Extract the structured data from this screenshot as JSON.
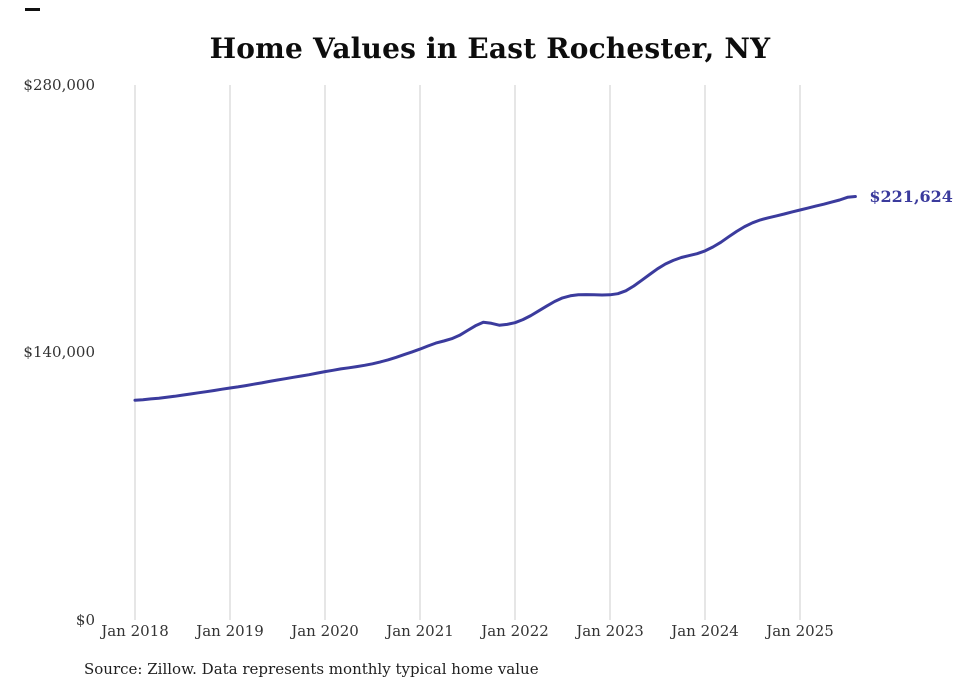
{
  "title": "Home Values in East Rochester, NY",
  "source": "Source: Zillow. Data represents monthly typical home value",
  "colors": {
    "line": "#3b3b9d",
    "grid": "#cccccc",
    "axis_text": "#333333",
    "title_text": "#0d0d0d"
  },
  "chart_data": {
    "type": "line",
    "title": "Home Values in East Rochester, NY",
    "series_name": "Monthly typical home value",
    "x_unit": "month",
    "start_month": "Jan 2018",
    "end_month": "Aug 2025",
    "x_tick_labels": [
      "Jan 2018",
      "Jan 2019",
      "Jan 2020",
      "Jan 2021",
      "Jan 2022",
      "Jan 2023",
      "Jan 2024",
      "Jan 2025"
    ],
    "y_tick_labels": [
      "$0",
      "$140,000",
      "$280,000"
    ],
    "ylim": [
      0,
      280000
    ],
    "grid": "vertical-only",
    "legend": "none",
    "final_value": 221624,
    "final_value_label": "$221,624",
    "values": [
      115000,
      115300,
      115700,
      116100,
      116600,
      117100,
      117700,
      118300,
      118900,
      119500,
      120100,
      120800,
      121400,
      122000,
      122700,
      123400,
      124100,
      124900,
      125600,
      126300,
      127000,
      127700,
      128400,
      129200,
      130000,
      130700,
      131400,
      132000,
      132600,
      133300,
      134100,
      135100,
      136200,
      137500,
      138900,
      140300,
      141800,
      143400,
      144900,
      146000,
      147200,
      149000,
      151500,
      154000,
      155800,
      155300,
      154300,
      154700,
      155600,
      157200,
      159300,
      161800,
      164300,
      166700,
      168600,
      169700,
      170200,
      170300,
      170200,
      170100,
      170200,
      170800,
      172300,
      174800,
      177800,
      180800,
      183800,
      186300,
      188200,
      189700,
      190700,
      191700,
      193200,
      195200,
      197700,
      200600,
      203400,
      205900,
      207900,
      209400,
      210500,
      211500,
      212500,
      213600,
      214600,
      215600,
      216600,
      217600,
      218700,
      219800,
      221200,
      221624
    ]
  }
}
